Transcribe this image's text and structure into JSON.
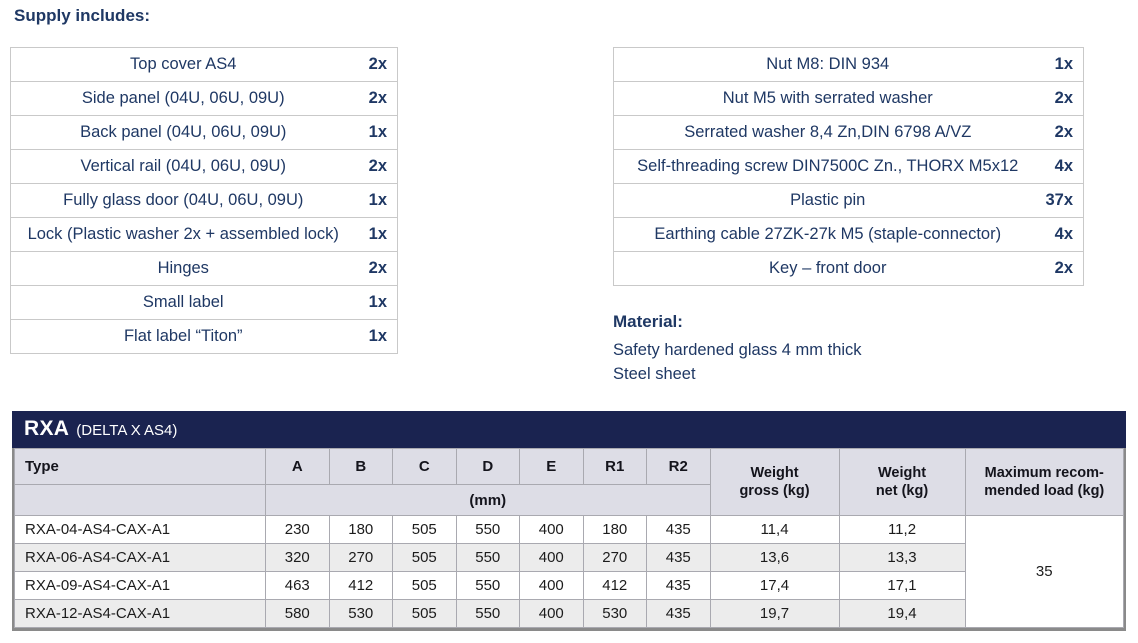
{
  "theme": {
    "navy_band": "#1a2350",
    "text_navy": "#1f3864",
    "header_row_bg": "#dddde6",
    "alt_row_bg": "#ececec",
    "upper_table_border": "#c9c9c9",
    "spec_grid_line": "#a9a9b0"
  },
  "supply": {
    "heading": "Supply includes:",
    "left_items": [
      {
        "label": "Top cover AS4",
        "qty": "2x"
      },
      {
        "label": "Side panel (04U, 06U, 09U)",
        "qty": "2x"
      },
      {
        "label": "Back panel (04U, 06U, 09U)",
        "qty": "1x"
      },
      {
        "label": "Vertical rail (04U, 06U, 09U)",
        "qty": "2x"
      },
      {
        "label": "Fully glass door (04U, 06U, 09U)",
        "qty": "1x"
      },
      {
        "label": "Lock (Plastic washer 2x + assembled lock)",
        "qty": "1x"
      },
      {
        "label": "Hinges",
        "qty": "2x"
      },
      {
        "label": "Small label",
        "qty": "1x"
      },
      {
        "label": "Flat label “Titon”",
        "qty": "1x"
      }
    ],
    "right_items": [
      {
        "label": "Nut M8: DIN 934",
        "qty": "1x"
      },
      {
        "label": "Nut M5 with serrated washer",
        "qty": "2x"
      },
      {
        "label": "Serrated washer 8,4 Zn,DIN 6798 A/VZ",
        "qty": "2x"
      },
      {
        "label": "Self-threading screw DIN7500C Zn., THORX M5x12",
        "qty": "4x"
      },
      {
        "label": "Plastic pin",
        "qty": "37x"
      },
      {
        "label": "Earthing cable 27ZK-27k M5 (staple-connector)",
        "qty": "4x"
      },
      {
        "label": "Key – front door",
        "qty": "2x"
      }
    ]
  },
  "material": {
    "heading": "Material:",
    "lines": [
      "Safety hardened glass 4 mm thick",
      "Steel sheet"
    ]
  },
  "spec_table": {
    "title": "RXA",
    "subtitle": "(DELTA X AS4)",
    "headers": {
      "type": "Type",
      "dims": [
        "A",
        "B",
        "C",
        "D",
        "E",
        "R1",
        "R2"
      ],
      "unit": "(mm)",
      "weight_gross": "Weight\ngross (kg)",
      "weight_net": "Weight\nnet (kg)",
      "max_load": "Maximum recom-\nmended load (kg)"
    },
    "rows": [
      {
        "type": "RXA-04-AS4-CAX-A1",
        "A": "230",
        "B": "180",
        "C": "505",
        "D": "550",
        "E": "400",
        "R1": "180",
        "R2": "435",
        "weight_gross": "11,4",
        "weight_net": "11,2"
      },
      {
        "type": "RXA-06-AS4-CAX-A1",
        "A": "320",
        "B": "270",
        "C": "505",
        "D": "550",
        "E": "400",
        "R1": "270",
        "R2": "435",
        "weight_gross": "13,6",
        "weight_net": "13,3"
      },
      {
        "type": "RXA-09-AS4-CAX-A1",
        "A": "463",
        "B": "412",
        "C": "505",
        "D": "550",
        "E": "400",
        "R1": "412",
        "R2": "435",
        "weight_gross": "17,4",
        "weight_net": "17,1"
      },
      {
        "type": "RXA-12-AS4-CAX-A1",
        "A": "580",
        "B": "530",
        "C": "505",
        "D": "550",
        "E": "400",
        "R1": "530",
        "R2": "435",
        "weight_gross": "19,7",
        "weight_net": "19,4"
      }
    ],
    "max_load_value": "35"
  }
}
